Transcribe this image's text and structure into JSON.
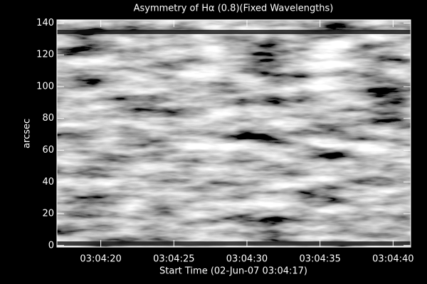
{
  "chart_data": {
    "type": "image",
    "title": "Asymmetry of Hα (0.8)(Fixed Wavelengths)",
    "x_label": "Start Time (02-Jun-07 03:04:17)",
    "y_label": "arcsec",
    "xlim": [
      17,
      41.2
    ],
    "xticks": [
      {
        "value": 20,
        "label": "03:04:20"
      },
      {
        "value": 25,
        "label": "03:04:25"
      },
      {
        "value": 30,
        "label": "03:04:30"
      },
      {
        "value": 35,
        "label": "03:04:35"
      },
      {
        "value": 40,
        "label": "03:04:40"
      }
    ],
    "ylim": [
      -1,
      142
    ],
    "yticks": [
      0,
      20,
      40,
      60,
      80,
      100,
      120,
      140
    ],
    "colormap": "gray"
  }
}
